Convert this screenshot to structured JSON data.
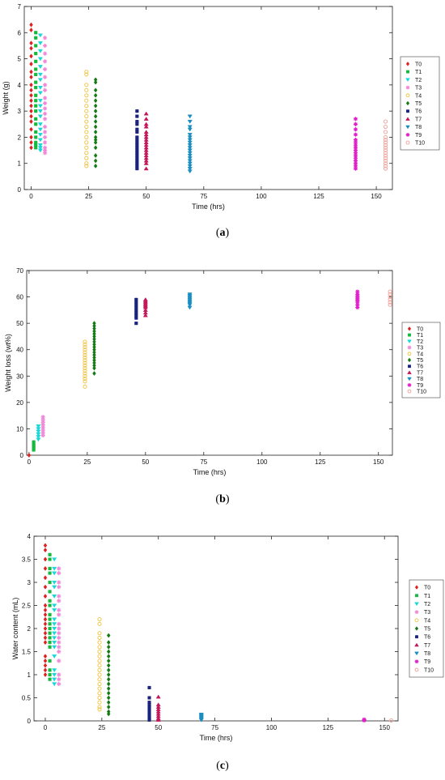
{
  "markers": {
    "T0": {
      "shape": "diamond",
      "color": "#e02020"
    },
    "T1": {
      "shape": "square",
      "color": "#16b83e"
    },
    "T2": {
      "shape": "triDown",
      "color": "#19d8d8"
    },
    "T3": {
      "shape": "star",
      "color": "#f08ad8"
    },
    "T4": {
      "shape": "circle",
      "color": "#f0c850"
    },
    "T5": {
      "shape": "diamond",
      "color": "#137a13"
    },
    "T6": {
      "shape": "square",
      "color": "#1a237e"
    },
    "T7": {
      "shape": "triUp",
      "color": "#c2185b"
    },
    "T8": {
      "shape": "triDown",
      "color": "#1a8ec0"
    },
    "T9": {
      "shape": "star",
      "color": "#e020c8"
    },
    "T10": {
      "shape": "circle",
      "color": "#f0a8a0"
    }
  },
  "chart_data": [
    {
      "panel": "a",
      "type": "scatter",
      "caption": "(a)",
      "xlabel": "Time (hrs)",
      "ylabel": "Weight (g)",
      "xlim": [
        -3,
        157
      ],
      "ylim": [
        0,
        7
      ],
      "xticks": [
        0,
        25,
        50,
        75,
        100,
        125,
        150
      ],
      "yticks": [
        0,
        1,
        2,
        3,
        4,
        5,
        6,
        7
      ],
      "legend_position": "right",
      "series": [
        {
          "name": "T0",
          "x": 0,
          "y": [
            6.3,
            6.1,
            5.6,
            5.4,
            5.1,
            4.8,
            4.5,
            4.3,
            4.0,
            3.8,
            3.6,
            3.4,
            3.2,
            3.0,
            2.8,
            2.6,
            2.3,
            2.0,
            1.8,
            1.6
          ]
        },
        {
          "name": "T1",
          "x": 2,
          "y": [
            6.0,
            5.8,
            5.5,
            5.2,
            4.9,
            4.6,
            4.4,
            4.1,
            3.9,
            3.6,
            3.4,
            3.2,
            3.0,
            2.7,
            2.5,
            2.2,
            2.0,
            1.8,
            1.7,
            1.6
          ]
        },
        {
          "name": "T2",
          "x": 4,
          "y": [
            5.9,
            5.6,
            5.3,
            5.0,
            4.7,
            4.4,
            4.2,
            3.9,
            3.7,
            3.4,
            3.2,
            3.0,
            2.8,
            2.5,
            2.3,
            2.1,
            1.9,
            1.7,
            1.6,
            1.5
          ]
        },
        {
          "name": "T3",
          "x": 6,
          "y": [
            5.8,
            5.5,
            5.2,
            4.9,
            4.6,
            4.3,
            4.0,
            3.8,
            3.5,
            3.3,
            3.1,
            2.9,
            2.7,
            2.4,
            2.2,
            2.0,
            1.8,
            1.6,
            1.5,
            1.4
          ]
        },
        {
          "name": "T4",
          "x": 24,
          "y": [
            4.5,
            4.4,
            4.0,
            3.8,
            3.6,
            3.4,
            3.2,
            3.0,
            2.8,
            2.6,
            2.4,
            2.2,
            2.0,
            1.8,
            1.6,
            1.4,
            1.2,
            1.0,
            0.9
          ]
        },
        {
          "name": "T5",
          "x": 28,
          "y": [
            4.2,
            4.1,
            3.8,
            3.6,
            3.4,
            3.2,
            3.0,
            2.8,
            2.6,
            2.4,
            2.2,
            2.0,
            1.9,
            1.8,
            1.6,
            1.3,
            1.1,
            0.9
          ]
        },
        {
          "name": "T6",
          "x": 46,
          "y": [
            3.0,
            2.8,
            2.6,
            2.5,
            2.3,
            2.2,
            2.0,
            1.9,
            1.8,
            1.7,
            1.6,
            1.5,
            1.4,
            1.3,
            1.2,
            1.1,
            1.0,
            0.9,
            0.8
          ]
        },
        {
          "name": "T7",
          "x": 50,
          "y": [
            2.9,
            2.7,
            2.5,
            2.4,
            2.2,
            2.1,
            2.0,
            1.9,
            1.8,
            1.7,
            1.6,
            1.5,
            1.4,
            1.3,
            1.2,
            1.1,
            1.0,
            0.8
          ]
        },
        {
          "name": "T8",
          "x": 69,
          "y": [
            2.8,
            2.6,
            2.4,
            2.3,
            2.1,
            2.0,
            1.9,
            1.8,
            1.7,
            1.6,
            1.5,
            1.4,
            1.3,
            1.2,
            1.1,
            1.0,
            0.9,
            0.8,
            0.7
          ]
        },
        {
          "name": "T9",
          "x": 141,
          "y": [
            2.7,
            2.5,
            2.3,
            2.1,
            1.9,
            1.8,
            1.7,
            1.6,
            1.5,
            1.4,
            1.3,
            1.2,
            1.1,
            1.0,
            0.9,
            0.8
          ]
        },
        {
          "name": "T10",
          "x": 154,
          "y": [
            2.6,
            2.4,
            2.2,
            2.0,
            1.9,
            1.8,
            1.7,
            1.6,
            1.5,
            1.4,
            1.3,
            1.2,
            1.1,
            1.0,
            0.9,
            0.8
          ]
        }
      ]
    },
    {
      "panel": "b",
      "type": "scatter",
      "caption": "(b)",
      "xlabel": "Time (hrs)",
      "ylabel": "Weight loss (wt%)",
      "xlim": [
        -1,
        156
      ],
      "ylim": [
        0,
        70
      ],
      "xticks": [
        0,
        25,
        50,
        75,
        100,
        125,
        150
      ],
      "yticks": [
        0,
        10,
        20,
        30,
        40,
        50,
        60,
        70
      ],
      "legend_position": "right",
      "series": [
        {
          "name": "T0",
          "x": 0,
          "y": [
            0
          ]
        },
        {
          "name": "T1",
          "x": 2,
          "y": [
            2.0,
            2.8,
            3.5,
            4.2,
            5.0
          ]
        },
        {
          "name": "T2",
          "x": 4,
          "y": [
            6.0,
            7.0,
            8.0,
            9.0,
            10.0,
            11.0
          ]
        },
        {
          "name": "T3",
          "x": 6,
          "y": [
            7.5,
            8.5,
            9.5,
            10.5,
            11.5,
            12.5,
            13.5,
            14.5
          ]
        },
        {
          "name": "T4",
          "x": 24,
          "y": [
            26,
            28,
            29,
            30,
            31,
            32,
            33,
            34,
            35,
            36,
            37,
            38,
            39,
            40,
            41,
            42,
            43
          ]
        },
        {
          "name": "T5",
          "x": 28,
          "y": [
            31,
            33,
            34,
            35,
            36,
            37,
            38,
            39,
            40,
            41,
            42,
            43,
            44,
            45,
            46,
            47,
            48,
            49,
            50
          ]
        },
        {
          "name": "T6",
          "x": 46,
          "y": [
            50,
            52,
            53,
            54,
            55,
            56,
            57,
            58,
            59
          ]
        },
        {
          "name": "T7",
          "x": 50,
          "y": [
            53,
            54,
            55,
            56,
            56.5,
            57,
            57.5,
            58,
            58.5,
            59
          ]
        },
        {
          "name": "T8",
          "x": 69,
          "y": [
            56,
            57,
            57.5,
            58,
            58.5,
            59,
            59.5,
            60,
            60.5,
            61
          ]
        },
        {
          "name": "T9",
          "x": 141,
          "y": [
            56,
            57,
            58,
            58.5,
            59,
            59.5,
            60,
            60.5,
            61,
            62
          ]
        },
        {
          "name": "T10",
          "x": 155,
          "y": [
            57,
            58,
            59,
            60,
            61,
            62
          ]
        }
      ]
    },
    {
      "panel": "c",
      "type": "scatter",
      "caption": "(c)",
      "xlabel": "Time (hrs)",
      "ylabel": "Water content (mL)",
      "xlim": [
        -5,
        156
      ],
      "ylim": [
        0,
        4
      ],
      "xticks": [
        0,
        25,
        50,
        75,
        100,
        125,
        150
      ],
      "yticks": [
        0,
        0.5,
        1,
        1.5,
        2,
        2.5,
        3,
        3.5,
        4
      ],
      "legend_position": "right",
      "series": [
        {
          "name": "T0",
          "x": 0,
          "y": [
            3.8,
            3.7,
            3.5,
            3.3,
            3.1,
            2.9,
            2.7,
            2.5,
            2.4,
            2.3,
            2.2,
            2.1,
            2.0,
            1.9,
            1.8,
            1.7,
            1.4,
            1.3,
            1.2,
            1.1,
            1.0
          ]
        },
        {
          "name": "T1",
          "x": 2,
          "y": [
            3.6,
            3.5,
            3.3,
            3.2,
            3.0,
            2.8,
            2.6,
            2.5,
            2.3,
            2.2,
            2.1,
            2.0,
            1.9,
            1.8,
            1.7,
            1.6,
            1.3,
            1.1,
            1.0,
            0.9
          ]
        },
        {
          "name": "T2",
          "x": 4,
          "y": [
            3.5,
            3.3,
            3.2,
            3.0,
            2.9,
            2.7,
            2.5,
            2.4,
            2.2,
            2.1,
            2.0,
            1.9,
            1.8,
            1.7,
            1.6,
            1.4,
            1.1,
            1.0,
            0.9,
            0.8
          ]
        },
        {
          "name": "T3",
          "x": 6,
          "y": [
            3.3,
            3.2,
            3.0,
            2.9,
            2.7,
            2.6,
            2.4,
            2.3,
            2.1,
            2.0,
            1.9,
            1.8,
            1.7,
            1.6,
            1.5,
            1.3,
            1.0,
            0.9,
            0.8
          ]
        },
        {
          "name": "T4",
          "x": 24,
          "y": [
            2.2,
            2.1,
            1.9,
            1.8,
            1.7,
            1.6,
            1.5,
            1.4,
            1.3,
            1.2,
            1.1,
            1.0,
            0.9,
            0.8,
            0.7,
            0.6,
            0.5,
            0.4,
            0.3,
            0.25
          ]
        },
        {
          "name": "T5",
          "x": 28,
          "y": [
            1.85,
            1.7,
            1.6,
            1.5,
            1.4,
            1.3,
            1.2,
            1.1,
            1.0,
            0.9,
            0.8,
            0.7,
            0.6,
            0.5,
            0.4,
            0.3,
            0.2,
            0.15
          ]
        },
        {
          "name": "T6",
          "x": 46,
          "y": [
            0.72,
            0.5,
            0.4,
            0.35,
            0.3,
            0.25,
            0.2,
            0.15,
            0.1,
            0.05,
            0.02
          ]
        },
        {
          "name": "T7",
          "x": 50,
          "y": [
            0.52,
            0.35,
            0.3,
            0.25,
            0.2,
            0.15,
            0.1,
            0.05,
            0.02
          ]
        },
        {
          "name": "T8",
          "x": 69,
          "y": [
            0.14,
            0.12,
            0.1,
            0.08,
            0.06,
            0.04,
            0.02
          ]
        },
        {
          "name": "T9",
          "x": 141,
          "y": [
            0.03,
            0.02,
            0.01
          ]
        },
        {
          "name": "T10",
          "x": 153,
          "y": [
            0.01
          ]
        }
      ]
    }
  ]
}
